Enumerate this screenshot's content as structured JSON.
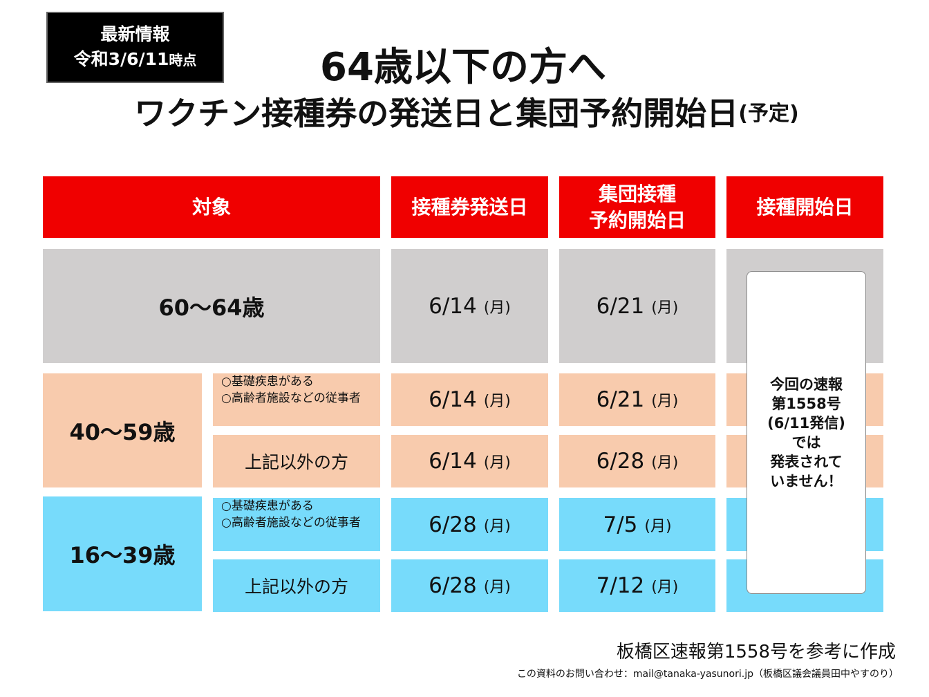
{
  "badge": {
    "line1": "最新情報",
    "line2": "令和3/6/11",
    "line2_suffix": "時点"
  },
  "title": {
    "line1": "64歳以下の方へ",
    "line2": "ワクチン接種券の発送日と集団予約開始日",
    "line2_suffix": "(予定)"
  },
  "headers": [
    "対象",
    "接種券発送日",
    "集団接種\n予約開始日",
    "接種開始日"
  ],
  "rows": {
    "r60": {
      "age": "60〜64歳",
      "send": "6/14",
      "send_dow": "(月)",
      "reserve": "6/21",
      "reserve_dow": "(月)"
    },
    "r40": {
      "age": "40〜59歳",
      "a": {
        "cond1": "○基礎疾患がある",
        "cond2": "○高齢者施設などの従事者",
        "send": "6/14",
        "send_dow": "(月)",
        "reserve": "6/21",
        "reserve_dow": "(月)"
      },
      "b": {
        "cond": "上記以外の方",
        "send": "6/14",
        "send_dow": "(月)",
        "reserve": "6/28",
        "reserve_dow": "(月)"
      }
    },
    "r16": {
      "age": "16〜39歳",
      "a": {
        "cond1": "○基礎疾患がある",
        "cond2": "○高齢者施設などの従事者",
        "send": "6/28",
        "send_dow": "(月)",
        "reserve": "7/5",
        "reserve_dow": "(月)"
      },
      "b": {
        "cond": "上記以外の方",
        "send": "6/28",
        "send_dow": "(月)",
        "reserve": "7/12",
        "reserve_dow": "(月)"
      }
    }
  },
  "note": "今回の速報\n第1558号\n(6/11発信)\nでは\n発表されて\nいません！",
  "footer": {
    "source": "板橋区速報第1558号を参考に作成",
    "contact": "この資料のお問い合わせ：mail@tanaka-yasunori.jp（板橋区議会議員田中やすのり）"
  },
  "colors": {
    "header": "#f00000",
    "row60": "#d0cece",
    "row40": "#f8cbad",
    "row16": "#77dbfb"
  }
}
